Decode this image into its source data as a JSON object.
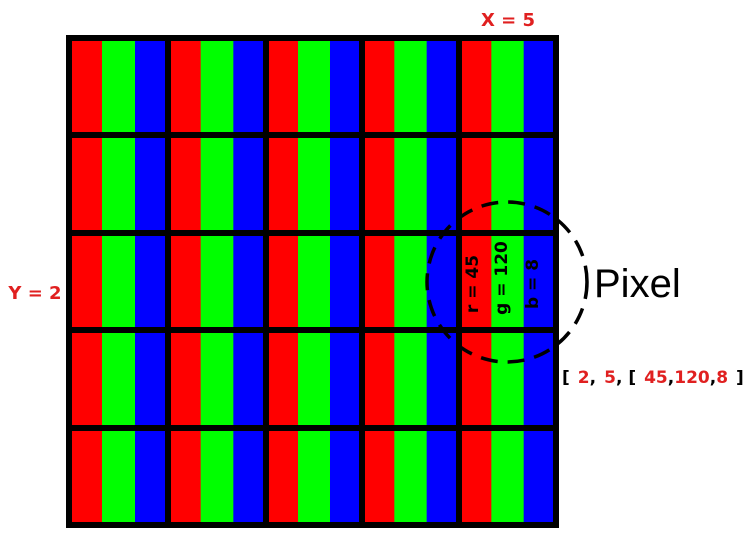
{
  "labels": {
    "x": "X = 5",
    "y": "Y = 2",
    "pixel": "Pixel",
    "r": "r = 45",
    "g": "g = 120",
    "b": "b = 8"
  },
  "tuple": {
    "open": "[",
    "row": "2",
    "sep1": ",",
    "col": "5",
    "sep2": ", [",
    "r": "45",
    "sep3": ",",
    "g": "120",
    "sep4": ",",
    "b": "8",
    "close": "]]"
  },
  "grid": {
    "rows": 5,
    "cols": 5,
    "highlight_row": 2,
    "highlight_col": 5
  },
  "colors": {
    "red": "#ff0000",
    "green": "#00ff00",
    "blue": "#0000ff",
    "line": "#000000",
    "label": "#e02020"
  }
}
